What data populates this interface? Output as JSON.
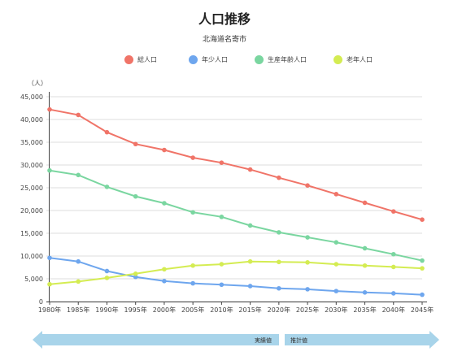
{
  "chart_data": {
    "type": "line",
    "title": "人口推移",
    "subtitle": "北海道名寄市",
    "ylabel": "（人）",
    "x": [
      "1980年",
      "1985年",
      "1990年",
      "1995年",
      "2000年",
      "2005年",
      "2010年",
      "2015年",
      "2020年",
      "2025年",
      "2030年",
      "2035年",
      "2040年",
      "2045年"
    ],
    "ylim": [
      0,
      45000
    ],
    "yticks": [
      0,
      5000,
      10000,
      15000,
      20000,
      25000,
      30000,
      35000,
      40000,
      45000
    ],
    "ytick_labels": [
      "0",
      "5,000",
      "10,000",
      "15,000",
      "20,000",
      "25,000",
      "30,000",
      "35,000",
      "40,000",
      "45,000"
    ],
    "grid": true,
    "legend_position": "top",
    "series": [
      {
        "name": "総人口",
        "color": "#f07468",
        "values": [
          42200,
          41000,
          37200,
          34600,
          33300,
          31600,
          30500,
          29000,
          27200,
          25500,
          23600,
          21700,
          19800,
          18000
        ]
      },
      {
        "name": "年少人口",
        "color": "#6ea6ee",
        "values": [
          9600,
          8800,
          6700,
          5400,
          4500,
          4000,
          3700,
          3400,
          2900,
          2700,
          2300,
          2000,
          1800,
          1500
        ]
      },
      {
        "name": "生産年齢人口",
        "color": "#7ad6a0",
        "values": [
          28800,
          27800,
          25200,
          23100,
          21600,
          19600,
          18600,
          16700,
          15200,
          14100,
          13000,
          11700,
          10400,
          9000
        ]
      },
      {
        "name": "老年人口",
        "color": "#d4ec52",
        "values": [
          3800,
          4400,
          5200,
          6100,
          7100,
          7900,
          8200,
          8800,
          8700,
          8600,
          8200,
          7900,
          7600,
          7300
        ]
      }
    ],
    "annotations": {
      "actual_label": "実績値",
      "projected_label": "推計値",
      "actual_color": "#a8d4ea",
      "projected_color": "#a8d4ea"
    }
  }
}
